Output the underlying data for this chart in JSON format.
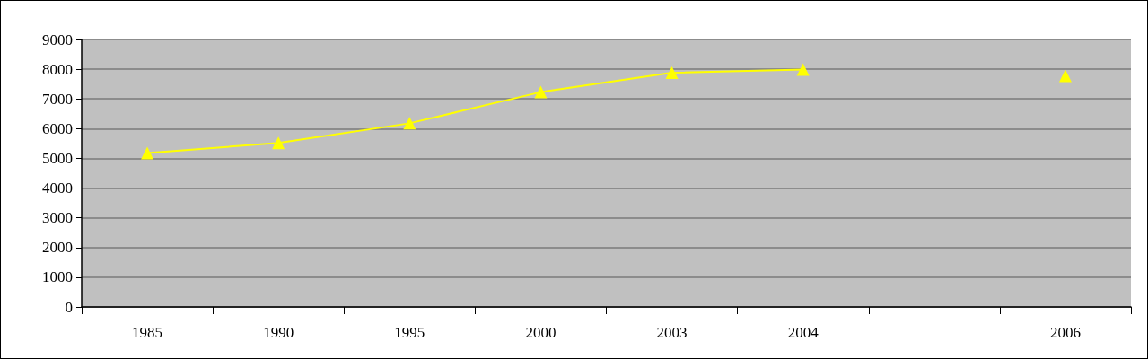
{
  "chart_data": {
    "type": "line",
    "categories": [
      "1985",
      "1990",
      "1995",
      "2000",
      "2003",
      "2004",
      null,
      "2006"
    ],
    "series": [
      {
        "color": "#ffff00",
        "values": [
          5180,
          5520,
          6180,
          7230,
          7880,
          7990,
          null,
          7780
        ]
      }
    ],
    "ylim": [
      0,
      9000
    ],
    "yticks": [
      0,
      1000,
      2000,
      3000,
      4000,
      5000,
      6000,
      7000,
      8000,
      9000
    ],
    "grid": "y",
    "marker": "triangle",
    "line_style": "solid"
  }
}
